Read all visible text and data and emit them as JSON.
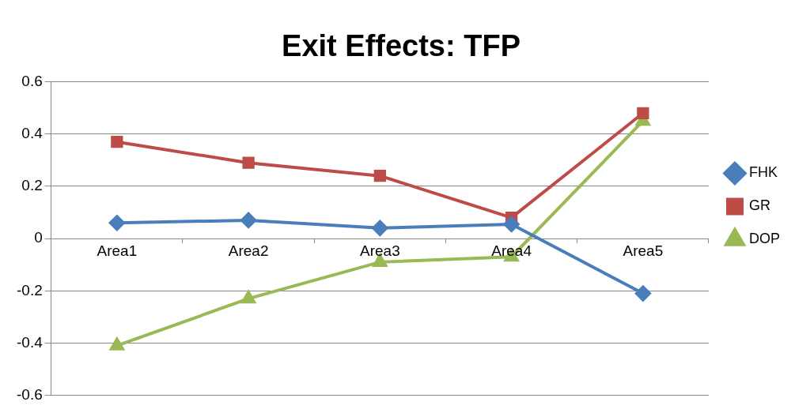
{
  "chart_data": {
    "type": "line",
    "title": "Exit Effects: TFP",
    "categories": [
      "Area1",
      "Area2",
      "Area3",
      "Area4",
      "Area5"
    ],
    "series": [
      {
        "name": "FHK",
        "color": "#4a7ebb",
        "marker": "diamond",
        "values": [
          0.06,
          0.07,
          0.04,
          0.055,
          -0.21
        ]
      },
      {
        "name": "GR",
        "color": "#be4b48",
        "marker": "square",
        "values": [
          0.37,
          0.29,
          0.24,
          0.08,
          0.48
        ]
      },
      {
        "name": "DOP",
        "color": "#98b954",
        "marker": "triangle",
        "values": [
          -0.41,
          -0.23,
          -0.09,
          -0.07,
          0.45
        ]
      }
    ],
    "ylim": [
      -0.6,
      0.6
    ],
    "yticks": [
      -0.6,
      -0.4,
      -0.2,
      0,
      0.2,
      0.4,
      0.6
    ],
    "grid": "y",
    "legend": "right",
    "line_style": "solid"
  }
}
